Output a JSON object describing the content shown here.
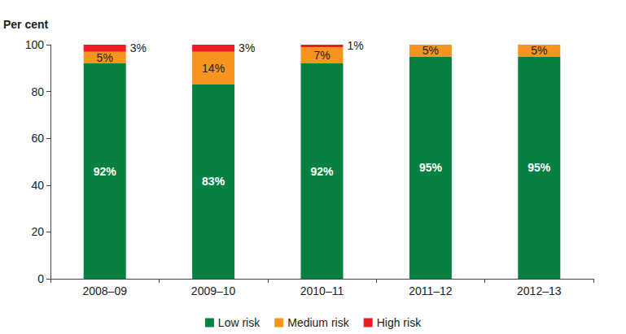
{
  "chart_data": {
    "type": "bar",
    "stacked": true,
    "data_labels": true,
    "grid": false,
    "legend": "bottom",
    "y_label": "Per cent",
    "categories": [
      "2008–09",
      "2009–10",
      "2010–11",
      "2011–12",
      "2012–13"
    ],
    "ylim": [
      0,
      100
    ],
    "yticks": [
      0,
      20,
      40,
      60,
      80,
      100
    ],
    "series": [
      {
        "name": "Low risk",
        "color": "#078141",
        "values": [
          92,
          83,
          92,
          95,
          95
        ],
        "value_labels": [
          "92%",
          "83%",
          "92%",
          "95%",
          "95%"
        ]
      },
      {
        "name": "Medium risk",
        "color": "#f7941d",
        "values": [
          5,
          14,
          7,
          5,
          5
        ],
        "value_labels": [
          "5%",
          "14%",
          "7%",
          "5%",
          "5%"
        ]
      },
      {
        "name": "High risk",
        "color": "#ed1c24",
        "values": [
          3,
          3,
          1,
          0,
          0
        ],
        "value_labels": [
          "3%",
          "3%",
          "1%",
          null,
          null
        ]
      }
    ]
  }
}
